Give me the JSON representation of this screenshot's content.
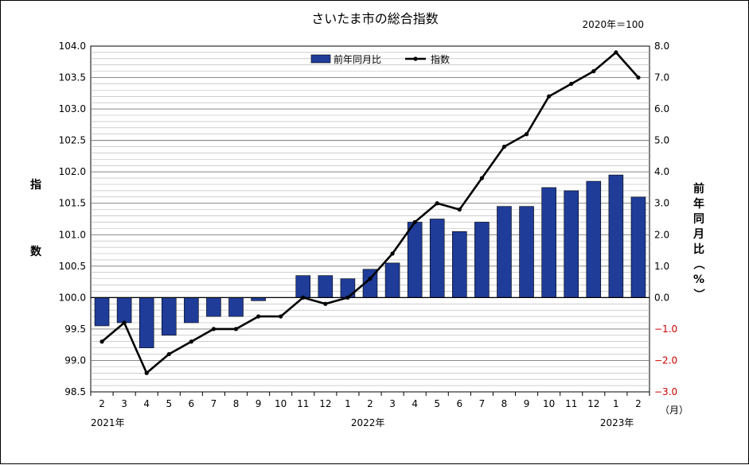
{
  "chart_data": {
    "type": "bar+line",
    "title": "さいたま市の総合指数",
    "base_note": "2020年＝100",
    "ylabel_left": "指数",
    "ylabel_right": "前年同月比（%）",
    "month_unit": "（月）",
    "categories": [
      "2",
      "3",
      "4",
      "5",
      "6",
      "7",
      "8",
      "9",
      "10",
      "11",
      "12",
      "1",
      "2",
      "3",
      "4",
      "5",
      "6",
      "7",
      "8",
      "9",
      "10",
      "11",
      "12",
      "1",
      "2"
    ],
    "year_labels": [
      {
        "index": 0,
        "label": "2021年"
      },
      {
        "index": 11,
        "label": "2022年"
      },
      {
        "index": 23,
        "label": "2023年"
      }
    ],
    "series": [
      {
        "name": "前年同月比",
        "type": "bar",
        "axis": "right",
        "color": "#1f3c99",
        "values": [
          -0.9,
          -0.8,
          -1.6,
          -1.2,
          -0.8,
          -0.6,
          -0.6,
          -0.1,
          0.0,
          0.7,
          0.7,
          0.6,
          0.9,
          1.1,
          2.4,
          2.5,
          2.1,
          2.4,
          2.9,
          2.9,
          3.5,
          3.4,
          3.7,
          3.9,
          3.2
        ]
      },
      {
        "name": "指数",
        "type": "line",
        "axis": "left",
        "color": "#000000",
        "values": [
          99.3,
          99.6,
          98.8,
          99.1,
          99.3,
          99.5,
          99.5,
          99.7,
          99.7,
          100.0,
          99.9,
          100.0,
          100.3,
          100.7,
          101.2,
          101.5,
          101.4,
          101.9,
          102.4,
          102.6,
          103.2,
          103.4,
          103.6,
          103.9,
          103.5
        ]
      }
    ],
    "y_left": {
      "min": 98.5,
      "max": 104.0,
      "ticks": [
        "98.5",
        "99.0",
        "99.5",
        "100.0",
        "100.5",
        "101.0",
        "101.5",
        "102.0",
        "102.5",
        "103.0",
        "103.5",
        "104.0"
      ]
    },
    "y_right": {
      "min": -3.0,
      "max": 8.0,
      "ticks": [
        "−3.0",
        "−2.0",
        "−1.0",
        "0.0",
        "1.0",
        "2.0",
        "3.0",
        "4.0",
        "5.0",
        "6.0",
        "7.0",
        "8.0"
      ],
      "negative_color": "#cc0000"
    },
    "grid": true,
    "legend_position": "top"
  }
}
